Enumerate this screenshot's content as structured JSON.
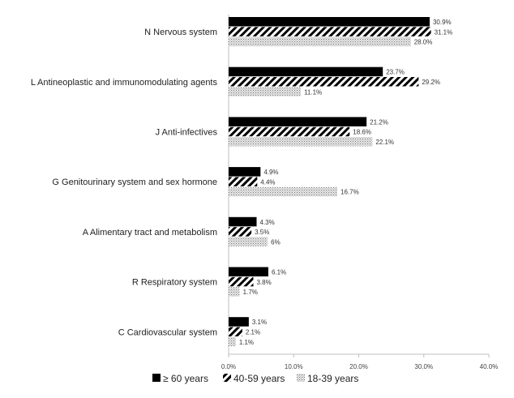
{
  "chart_data": {
    "type": "bar",
    "orientation": "horizontal",
    "categories": [
      "N  Nervous system",
      "L  Antineoplastic and immunomodulating agents",
      "J  Anti-infectives",
      "G  Genitourinary system and sex hormone",
      "A  Alimentary tract and metabolism",
      "R  Respiratory system",
      "C  Cardiovascular system"
    ],
    "series": [
      {
        "name": "≥ 60 years",
        "values": [
          30.9,
          23.7,
          21.2,
          4.9,
          4.3,
          6.1,
          3.1
        ],
        "labels": [
          "30.9%",
          "23.7%",
          "21.2%",
          "4.9%",
          "4.3%",
          "6.1%",
          "3.1%"
        ],
        "color": "#000000"
      },
      {
        "name": "40-59 years",
        "values": [
          31.1,
          29.2,
          18.6,
          4.4,
          3.5,
          3.8,
          2.1
        ],
        "labels": [
          "31.1%",
          "29.2%",
          "18.6%",
          "4.4%",
          "3.5%",
          "3.8%",
          "2.1%"
        ],
        "color": "#000000"
      },
      {
        "name": "18-39 years",
        "values": [
          28.0,
          11.1,
          22.1,
          16.7,
          6.0,
          1.7,
          1.1
        ],
        "labels": [
          "28.0%",
          "11.1%",
          "22.1%",
          "16.7%",
          "6%",
          "1.7%",
          "1.1%"
        ],
        "color": "#9a9a9a"
      }
    ],
    "xlim": [
      0,
      40
    ],
    "xticks": [
      "0.0%",
      "10.0%",
      "20.0%",
      "30.0%",
      "40.0%"
    ],
    "grid": false,
    "legend_position": "bottom"
  }
}
